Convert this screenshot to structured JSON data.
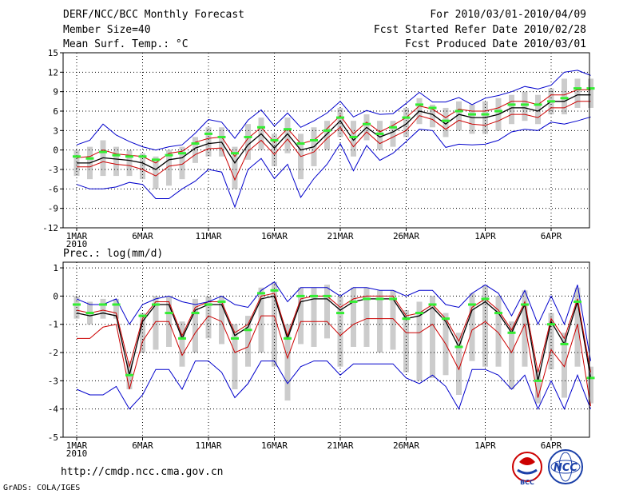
{
  "header": {
    "title": "DERF/NCC/BCC Monthly Forecast",
    "member_size": "Member Size=40",
    "variable1": "Mean Surf. Temp.: °C",
    "forecast_period": "For 2010/03/01-2010/04/09",
    "started_refer": "Fcst Started Refer Date 2010/02/28",
    "produced": "Fcst Produced Date 2010/03/01"
  },
  "panel2_title": "Prec.: log(mm/d)",
  "footer": {
    "url": "http://cmdp.ncc.cma.gov.cn",
    "credit": "GrADS: COLA/IGES"
  },
  "logos": {
    "bcc": "BCC",
    "ncc": "NCC"
  },
  "colors": {
    "ensemble_mean": "#000000",
    "spread_inner": "#cc0000",
    "spread_outer": "#0000cc",
    "box": "#cccccc",
    "marker": "#33ee33",
    "grid": "#000000"
  },
  "chart_data": [
    {
      "type": "line",
      "title": "Mean Surf. Temp.: °C",
      "ylim": [
        -12,
        15
      ],
      "yticks": [
        "15",
        "12",
        "9",
        "6",
        "3",
        "0",
        "-3",
        "-6",
        "-9",
        "-12"
      ],
      "xticks": [
        {
          "label": "1MAR",
          "sub": "2010",
          "day": 1
        },
        {
          "label": "6MAR",
          "day": 6
        },
        {
          "label": "11MAR",
          "day": 11
        },
        {
          "label": "16MAR",
          "day": 16
        },
        {
          "label": "21MAR",
          "day": 21
        },
        {
          "label": "26MAR",
          "day": 26
        },
        {
          "label": "1APR",
          "day": 32
        },
        {
          "label": "6APR",
          "day": 37
        }
      ],
      "series": [
        {
          "name": "mean",
          "values": [
            -2.0,
            -2.0,
            -1.2,
            -1.4,
            -1.6,
            -2.0,
            -3.0,
            -1.5,
            -1.2,
            0.3,
            1.0,
            1.2,
            -2.0,
            0.8,
            2.5,
            0.3,
            2.5,
            0.0,
            0.5,
            2.5,
            4.5,
            1.5,
            3.5,
            2.0,
            2.8,
            4.0,
            6.0,
            5.5,
            4.0,
            5.5,
            5.0,
            5.0,
            5.5,
            6.5,
            6.5,
            6.0,
            7.5,
            7.5,
            8.5,
            8.5
          ]
        },
        {
          "name": "upper_inner",
          "values": [
            -1.2,
            -1.0,
            0.0,
            -0.6,
            -0.8,
            -1.0,
            -2.0,
            -0.5,
            -0.2,
            1.2,
            1.8,
            2.0,
            -1.0,
            1.8,
            3.5,
            1.2,
            3.3,
            1.0,
            1.5,
            3.3,
            5.3,
            2.5,
            4.3,
            2.8,
            3.8,
            5.0,
            6.8,
            6.3,
            5.0,
            6.3,
            6.0,
            6.0,
            6.5,
            7.5,
            7.5,
            7.0,
            8.5,
            8.5,
            9.3,
            9.3
          ]
        },
        {
          "name": "lower_inner",
          "values": [
            -2.6,
            -2.6,
            -1.8,
            -2.2,
            -2.4,
            -3.0,
            -4.0,
            -2.5,
            -2.2,
            -0.7,
            0.2,
            0.3,
            -4.6,
            -0.2,
            1.5,
            -0.7,
            1.7,
            -1.0,
            -0.3,
            1.8,
            3.5,
            0.5,
            2.8,
            1.0,
            2.0,
            3.0,
            5.3,
            4.7,
            3.2,
            4.6,
            4.0,
            3.8,
            4.5,
            5.5,
            5.5,
            5.0,
            6.5,
            6.5,
            7.5,
            7.5
          ]
        },
        {
          "name": "upper_outer",
          "values": [
            0.8,
            1.5,
            4.0,
            2.3,
            1.3,
            0.5,
            0.0,
            0.5,
            0.8,
            2.6,
            4.7,
            4.3,
            1.8,
            4.6,
            6.2,
            3.7,
            5.7,
            3.5,
            4.5,
            5.7,
            7.5,
            5.1,
            6.1,
            5.5,
            5.6,
            7.2,
            8.9,
            7.4,
            7.4,
            8.1,
            7.0,
            8.0,
            8.4,
            9.0,
            9.8,
            9.4,
            10.0,
            12.0,
            12.3,
            11.5
          ]
        },
        {
          "name": "lower_outer",
          "values": [
            -5.3,
            -6.0,
            -6.0,
            -5.7,
            -5.0,
            -5.3,
            -7.5,
            -7.5,
            -6.0,
            -4.8,
            -3.0,
            -3.4,
            -8.8,
            -3.0,
            -1.3,
            -4.4,
            -2.2,
            -7.3,
            -4.4,
            -2.2,
            1.0,
            -3.2,
            0.7,
            -1.6,
            -0.5,
            1.3,
            3.2,
            3.0,
            0.4,
            0.9,
            0.8,
            0.9,
            1.5,
            2.8,
            3.2,
            3.0,
            4.3,
            4.0,
            4.5,
            5.1
          ]
        }
      ],
      "boxes": {
        "top": [
          0.0,
          0.5,
          1.5,
          0.5,
          0.0,
          -0.5,
          -1.0,
          0.0,
          0.5,
          2.0,
          3.5,
          3.5,
          0.5,
          4.0,
          5.0,
          2.5,
          5.0,
          2.5,
          3.5,
          4.5,
          6.5,
          4.5,
          5.5,
          4.5,
          4.5,
          6.5,
          8.0,
          7.0,
          6.5,
          7.5,
          7.0,
          7.5,
          8.0,
          8.5,
          9.0,
          8.5,
          9.5,
          11.0,
          11.0,
          11.0
        ],
        "bottom": [
          -4.0,
          -4.5,
          -4.0,
          -4.0,
          -4.0,
          -4.5,
          -6.0,
          -5.5,
          -4.5,
          -2.0,
          -1.0,
          -1.0,
          -6.0,
          -1.5,
          0.0,
          -2.5,
          -0.5,
          -4.5,
          -2.5,
          0.0,
          2.0,
          -1.0,
          1.5,
          0.0,
          0.5,
          2.0,
          4.0,
          3.5,
          2.0,
          3.0,
          2.5,
          2.5,
          3.0,
          4.0,
          4.5,
          4.0,
          5.5,
          5.5,
          6.5,
          6.5
        ]
      },
      "markers": [
        -1.0,
        -1.3,
        -0.3,
        -0.8,
        -1.0,
        -1.0,
        -1.5,
        -0.8,
        -0.5,
        1.0,
        2.5,
        2.0,
        -0.5,
        2.0,
        3.5,
        1.5,
        3.2,
        1.0,
        1.5,
        3.0,
        5.0,
        2.0,
        4.0,
        2.5,
        3.5,
        5.0,
        7.0,
        6.5,
        4.5,
        6.0,
        5.5,
        5.5,
        6.0,
        7.0,
        7.0,
        7.0,
        7.5,
        8.0,
        9.5,
        9.5
      ]
    },
    {
      "type": "line",
      "title": "Prec.: log(mm/d)",
      "ylim": [
        -5,
        1.2
      ],
      "yticks": [
        "1",
        "0",
        "-1",
        "-2",
        "-3",
        "-4",
        "-5"
      ],
      "xticks": [
        {
          "label": "1MAR",
          "sub": "2010",
          "day": 1
        },
        {
          "label": "6MAR",
          "day": 6
        },
        {
          "label": "11MAR",
          "day": 11
        },
        {
          "label": "16MAR",
          "day": 16
        },
        {
          "label": "21MAR",
          "day": 21
        },
        {
          "label": "26MAR",
          "day": 26
        },
        {
          "label": "1APR",
          "day": 32
        },
        {
          "label": "6APR",
          "day": 37
        }
      ],
      "series": [
        {
          "name": "mean",
          "values": [
            -0.6,
            -0.7,
            -0.6,
            -0.7,
            -2.8,
            -0.9,
            -0.3,
            -0.3,
            -1.5,
            -0.5,
            -0.3,
            -0.3,
            -1.4,
            -1.1,
            -0.1,
            0.0,
            -1.5,
            -0.2,
            -0.1,
            -0.1,
            -0.5,
            -0.2,
            -0.1,
            -0.1,
            -0.1,
            -0.8,
            -0.7,
            -0.4,
            -0.9,
            -1.8,
            -0.5,
            -0.2,
            -0.6,
            -1.3,
            -0.3,
            -3.0,
            -0.9,
            -1.7,
            -0.2,
            -2.9
          ]
        },
        {
          "name": "upper_inner",
          "values": [
            -0.5,
            -0.6,
            -0.5,
            -0.6,
            -2.5,
            -0.8,
            -0.2,
            -0.2,
            -1.4,
            -0.4,
            -0.2,
            -0.2,
            -1.3,
            -1.0,
            0.0,
            0.1,
            -1.4,
            -0.1,
            0.0,
            0.0,
            -0.4,
            -0.1,
            0.0,
            0.0,
            0.0,
            -0.7,
            -0.6,
            -0.3,
            -0.8,
            -1.6,
            -0.4,
            -0.1,
            -0.5,
            -1.2,
            -0.2,
            -2.7,
            -0.8,
            -1.5,
            -0.1,
            -2.7
          ]
        },
        {
          "name": "lower_inner",
          "values": [
            -1.5,
            -1.5,
            -1.1,
            -1.0,
            -3.3,
            -1.6,
            -0.9,
            -0.9,
            -2.1,
            -1.3,
            -0.7,
            -0.9,
            -2.0,
            -1.8,
            -0.7,
            -0.7,
            -2.2,
            -0.9,
            -0.9,
            -0.9,
            -1.4,
            -1.0,
            -0.8,
            -0.8,
            -0.8,
            -1.3,
            -1.3,
            -1.0,
            -1.7,
            -2.6,
            -1.2,
            -0.9,
            -1.3,
            -2.0,
            -1.0,
            -3.6,
            -1.9,
            -2.5,
            -1.0,
            -3.9
          ]
        },
        {
          "name": "upper_outer",
          "values": [
            -0.1,
            -0.3,
            -0.3,
            -0.1,
            -1.0,
            -0.3,
            -0.1,
            0.0,
            -0.2,
            -0.3,
            -0.2,
            0.0,
            -0.3,
            -0.4,
            0.2,
            0.5,
            -0.2,
            0.3,
            0.3,
            0.3,
            0.0,
            0.3,
            0.3,
            0.2,
            0.2,
            0.0,
            0.2,
            0.2,
            -0.3,
            -0.4,
            0.1,
            0.4,
            0.1,
            -0.7,
            0.2,
            -1.0,
            0.0,
            -1.0,
            0.4,
            -2.3
          ]
        },
        {
          "name": "lower_outer",
          "values": [
            -3.3,
            -3.5,
            -3.5,
            -3.2,
            -4.0,
            -3.5,
            -2.6,
            -2.6,
            -3.3,
            -2.3,
            -2.3,
            -2.7,
            -3.6,
            -3.1,
            -2.3,
            -2.3,
            -3.1,
            -2.5,
            -2.3,
            -2.3,
            -2.8,
            -2.4,
            -2.4,
            -2.4,
            -2.4,
            -2.9,
            -3.1,
            -2.8,
            -3.2,
            -4.0,
            -2.6,
            -2.6,
            -2.8,
            -3.3,
            -2.8,
            -4.0,
            -3.0,
            -4.0,
            -2.8,
            -4.0
          ]
        }
      ],
      "boxes": {
        "top": [
          0.0,
          -0.2,
          -0.1,
          -0.1,
          -2.3,
          -0.6,
          0.0,
          0.0,
          -0.9,
          -0.1,
          0.0,
          0.0,
          -1.0,
          -0.7,
          0.3,
          0.5,
          -1.0,
          0.3,
          0.3,
          0.4,
          0.0,
          0.3,
          0.3,
          0.2,
          0.2,
          -0.5,
          -0.2,
          0.0,
          -0.6,
          -1.3,
          0.1,
          0.4,
          0.0,
          -0.9,
          0.2,
          -2.6,
          -0.6,
          -1.3,
          0.3,
          -2.5
        ],
        "bottom": [
          -0.8,
          -1.0,
          -0.8,
          -0.8,
          -3.3,
          -2.0,
          -1.9,
          -1.8,
          -2.5,
          -2.0,
          -1.5,
          -1.7,
          -3.3,
          -2.5,
          -2.0,
          -2.5,
          -3.7,
          -1.7,
          -1.8,
          -1.5,
          -2.5,
          -1.8,
          -1.8,
          -2.0,
          -1.9,
          -2.7,
          -3.0,
          -2.9,
          -2.8,
          -3.5,
          -2.3,
          -2.5,
          -2.5,
          -3.3,
          -2.5,
          -3.8,
          -2.6,
          -3.6,
          -2.5,
          -3.8
        ]
      },
      "markers": [
        -0.3,
        -0.6,
        -0.3,
        -0.3,
        -2.8,
        -0.7,
        -0.3,
        -0.6,
        -1.5,
        -0.6,
        -0.3,
        -0.2,
        -1.5,
        -1.2,
        0.1,
        0.2,
        -1.5,
        0.0,
        0.0,
        0.0,
        -0.6,
        -0.2,
        -0.1,
        -0.1,
        -0.1,
        -0.8,
        -0.6,
        -0.3,
        -0.8,
        -1.8,
        -0.3,
        -0.1,
        -0.6,
        -1.3,
        -0.3,
        -3.0,
        -1.0,
        -1.7,
        -0.2,
        -2.9
      ]
    }
  ]
}
